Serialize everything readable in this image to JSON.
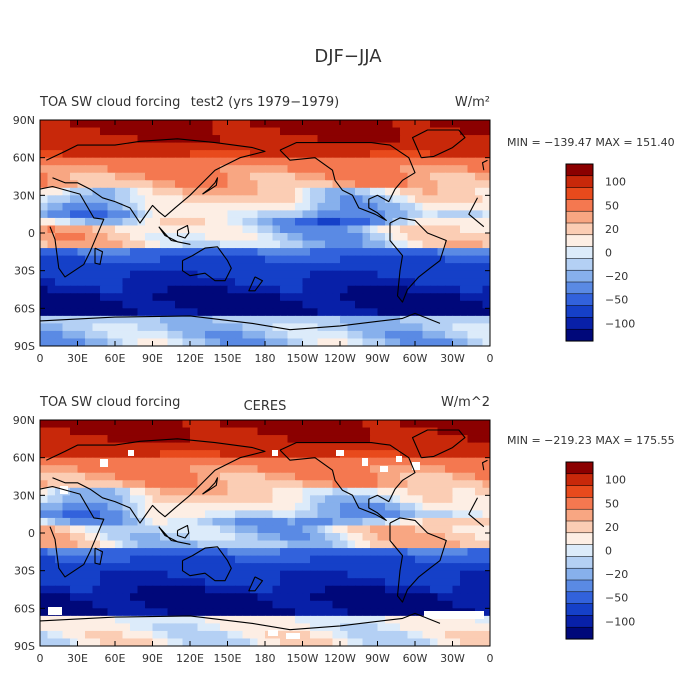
{
  "figure_title": "DJF−JJA",
  "chart_data": [
    {
      "type": "heatmap",
      "id": "top",
      "title": "TOA SW cloud forcing",
      "subtitle": "test2 (yrs 1979−1979)",
      "units": "W/m²",
      "stats": "MIN = −139.47  MAX = 151.40",
      "min": -139.47,
      "max": 151.4,
      "xticks": [
        "0",
        "30E",
        "60E",
        "90E",
        "120E",
        "150E",
        "180",
        "150W",
        "120W",
        "90W",
        "60W",
        "30W",
        "0"
      ],
      "yticks": [
        "90N",
        "60N",
        "30N",
        "0",
        "30S",
        "60S",
        "90S"
      ],
      "colorbar_labels": [
        "100",
        "50",
        "20",
        "0",
        "−20",
        "−50",
        "−100"
      ],
      "colorbar_colors": [
        "#8b0000",
        "#c8280a",
        "#e84a1c",
        "#f47850",
        "#f8a682",
        "#fbcdb4",
        "#fdeee4",
        "#dcebfa",
        "#b4d0f4",
        "#87b0ec",
        "#5a8ae4",
        "#3262dc",
        "#1540c8",
        "#0820a8",
        "#00087a"
      ]
    },
    {
      "type": "heatmap",
      "id": "bottom",
      "title": "TOA SW cloud forcing",
      "subtitle": "CERES",
      "units": "W/m^2",
      "stats": "MIN = −219.23  MAX = 175.55",
      "min": -219.23,
      "max": 175.55,
      "xticks": [
        "0",
        "30E",
        "60E",
        "90E",
        "120E",
        "150E",
        "180",
        "150W",
        "120W",
        "90W",
        "60W",
        "30W",
        "0"
      ],
      "yticks": [
        "90N",
        "60N",
        "30N",
        "0",
        "30S",
        "60S",
        "90S"
      ],
      "colorbar_labels": [
        "100",
        "50",
        "20",
        "0",
        "−20",
        "−50",
        "−100"
      ],
      "colorbar_colors": [
        "#8b0000",
        "#c8280a",
        "#e84a1c",
        "#f47850",
        "#f8a682",
        "#fbcdb4",
        "#fdeee4",
        "#dcebfa",
        "#b4d0f4",
        "#87b0ec",
        "#5a8ae4",
        "#3262dc",
        "#1540c8",
        "#0820a8",
        "#00087a"
      ]
    }
  ]
}
